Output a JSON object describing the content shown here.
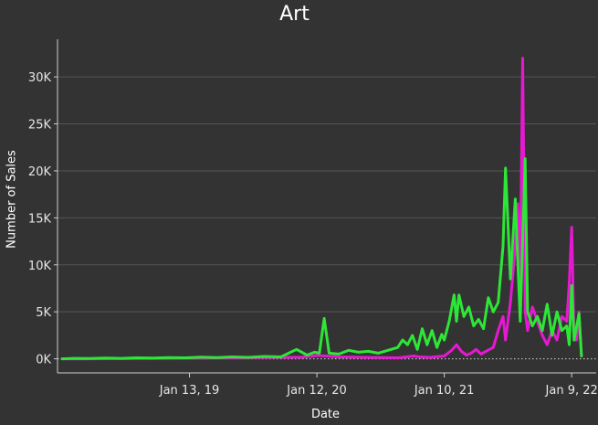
{
  "chart_data": {
    "type": "line",
    "title": "Art",
    "xlabel": "Date",
    "ylabel": "Number of Sales",
    "x_range": [
      "2018-01-01",
      "2022-03-20"
    ],
    "ylim": [
      -1500,
      34000
    ],
    "y_ticks": [
      {
        "value": 0,
        "label": "0K"
      },
      {
        "value": 5000,
        "label": "5K"
      },
      {
        "value": 10000,
        "label": "10K"
      },
      {
        "value": 15000,
        "label": "15K"
      },
      {
        "value": 20000,
        "label": "20K"
      },
      {
        "value": 25000,
        "label": "25K"
      },
      {
        "value": 30000,
        "label": "30K"
      }
    ],
    "x_ticks": [
      {
        "value": "2019-01-13",
        "label": "Jan 13, 19"
      },
      {
        "value": "2020-01-12",
        "label": "Jan 12, 20"
      },
      {
        "value": "2021-01-10",
        "label": "Jan 10, 21"
      },
      {
        "value": "2022-01-09",
        "label": "Jan 9, 22"
      }
    ],
    "grid": true,
    "zero_line": "dotted",
    "series": [
      {
        "color": "#e619d1",
        "points": [
          [
            "2018-01-14",
            0
          ],
          [
            "2018-04-01",
            0
          ],
          [
            "2018-07-01",
            20
          ],
          [
            "2018-10-01",
            40
          ],
          [
            "2019-01-01",
            60
          ],
          [
            "2019-04-01",
            80
          ],
          [
            "2019-07-01",
            100
          ],
          [
            "2019-10-01",
            150
          ],
          [
            "2019-12-01",
            180
          ],
          [
            "2020-01-12",
            350
          ],
          [
            "2020-02-09",
            300
          ],
          [
            "2020-03-15",
            200
          ],
          [
            "2020-06-01",
            150
          ],
          [
            "2020-09-01",
            100
          ],
          [
            "2020-10-15",
            300
          ],
          [
            "2020-11-01",
            200
          ],
          [
            "2020-12-01",
            150
          ],
          [
            "2021-01-10",
            300
          ],
          [
            "2021-01-31",
            900
          ],
          [
            "2021-02-14",
            1500
          ],
          [
            "2021-02-28",
            800
          ],
          [
            "2021-03-14",
            400
          ],
          [
            "2021-03-28",
            600
          ],
          [
            "2021-04-11",
            1000
          ],
          [
            "2021-04-25",
            500
          ],
          [
            "2021-05-09",
            800
          ],
          [
            "2021-05-30",
            1200
          ],
          [
            "2021-06-13",
            3000
          ],
          [
            "2021-06-27",
            4500
          ],
          [
            "2021-07-04",
            2000
          ],
          [
            "2021-07-18",
            6000
          ],
          [
            "2021-08-01",
            12000
          ],
          [
            "2021-08-08",
            16500
          ],
          [
            "2021-08-15",
            8000
          ],
          [
            "2021-08-22",
            32000
          ],
          [
            "2021-08-29",
            5000
          ],
          [
            "2021-09-05",
            3000
          ],
          [
            "2021-09-19",
            5500
          ],
          [
            "2021-10-03",
            4000
          ],
          [
            "2021-10-17",
            2500
          ],
          [
            "2021-10-31",
            1500
          ],
          [
            "2021-11-14",
            3000
          ],
          [
            "2021-11-28",
            2000
          ],
          [
            "2021-12-12",
            4500
          ],
          [
            "2021-12-26",
            4000
          ],
          [
            "2022-01-02",
            8000
          ],
          [
            "2022-01-09",
            14000
          ],
          [
            "2022-01-16",
            2000
          ],
          [
            "2022-01-23",
            2000
          ],
          [
            "2022-01-30",
            5000
          ],
          [
            "2022-02-06",
            300
          ]
        ]
      },
      {
        "color": "#2ee637",
        "points": [
          [
            "2018-01-14",
            0
          ],
          [
            "2018-02-15",
            50
          ],
          [
            "2018-04-01",
            30
          ],
          [
            "2018-05-15",
            80
          ],
          [
            "2018-07-01",
            50
          ],
          [
            "2018-08-15",
            100
          ],
          [
            "2018-10-01",
            80
          ],
          [
            "2018-11-15",
            120
          ],
          [
            "2019-01-01",
            100
          ],
          [
            "2019-02-15",
            180
          ],
          [
            "2019-04-01",
            120
          ],
          [
            "2019-05-15",
            200
          ],
          [
            "2019-07-01",
            150
          ],
          [
            "2019-08-15",
            250
          ],
          [
            "2019-10-01",
            200
          ],
          [
            "2019-11-15",
            1000
          ],
          [
            "2019-12-15",
            400
          ],
          [
            "2020-01-05",
            700
          ],
          [
            "2020-01-19",
            600
          ],
          [
            "2020-02-02",
            4300
          ],
          [
            "2020-02-16",
            600
          ],
          [
            "2020-03-15",
            500
          ],
          [
            "2020-04-12",
            900
          ],
          [
            "2020-05-10",
            700
          ],
          [
            "2020-06-07",
            800
          ],
          [
            "2020-07-05",
            600
          ],
          [
            "2020-08-02",
            900
          ],
          [
            "2020-08-30",
            1200
          ],
          [
            "2020-09-13",
            2000
          ],
          [
            "2020-09-27",
            1500
          ],
          [
            "2020-10-11",
            2500
          ],
          [
            "2020-10-25",
            1000
          ],
          [
            "2020-11-08",
            3200
          ],
          [
            "2020-11-22",
            1500
          ],
          [
            "2020-12-06",
            3000
          ],
          [
            "2020-12-20",
            1200
          ],
          [
            "2021-01-03",
            2600
          ],
          [
            "2021-01-10",
            2000
          ],
          [
            "2021-01-24",
            4000
          ],
          [
            "2021-02-07",
            6800
          ],
          [
            "2021-02-14",
            4000
          ],
          [
            "2021-02-21",
            6800
          ],
          [
            "2021-03-07",
            4500
          ],
          [
            "2021-03-21",
            5500
          ],
          [
            "2021-04-04",
            3500
          ],
          [
            "2021-04-18",
            4200
          ],
          [
            "2021-05-02",
            3200
          ],
          [
            "2021-05-16",
            6500
          ],
          [
            "2021-05-30",
            5000
          ],
          [
            "2021-06-13",
            6000
          ],
          [
            "2021-06-27",
            12000
          ],
          [
            "2021-07-04",
            20300
          ],
          [
            "2021-07-18",
            8500
          ],
          [
            "2021-08-01",
            17000
          ],
          [
            "2021-08-15",
            4000
          ],
          [
            "2021-08-29",
            21300
          ],
          [
            "2021-09-05",
            5000
          ],
          [
            "2021-09-19",
            3500
          ],
          [
            "2021-10-03",
            4500
          ],
          [
            "2021-10-17",
            3000
          ],
          [
            "2021-10-31",
            5800
          ],
          [
            "2021-11-14",
            2500
          ],
          [
            "2021-11-28",
            5000
          ],
          [
            "2021-12-12",
            3000
          ],
          [
            "2021-12-26",
            3500
          ],
          [
            "2022-01-02",
            1500
          ],
          [
            "2022-01-09",
            7800
          ],
          [
            "2022-01-16",
            2000
          ],
          [
            "2022-01-30",
            4800
          ],
          [
            "2022-02-06",
            300
          ]
        ]
      }
    ]
  }
}
